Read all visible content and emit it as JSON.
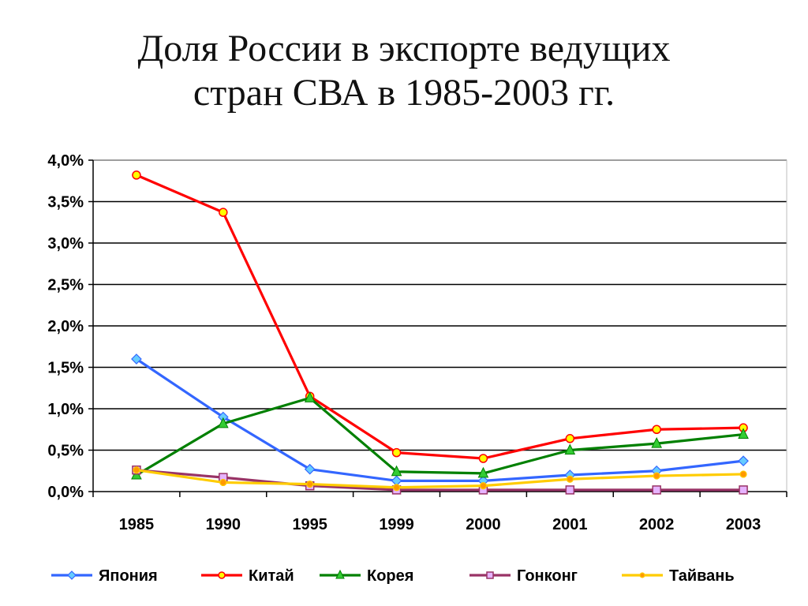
{
  "title": {
    "line1": "Доля России в экспорте ведущих",
    "line2": "стран СВА в 1985-2003 гг."
  },
  "chart_data": {
    "type": "line",
    "title": "Доля России в экспорте ведущих стран СВА в 1985-2003 гг.",
    "xlabel": "",
    "ylabel": "",
    "categories": [
      "1985",
      "1990",
      "1995",
      "1999",
      "2000",
      "2001",
      "2002",
      "2003"
    ],
    "ylim": [
      0,
      4.0
    ],
    "yticks": [
      "0,0%",
      "0,5%",
      "1,0%",
      "1,5%",
      "2,0%",
      "2,5%",
      "3,0%",
      "3,5%",
      "4,0%"
    ],
    "grid": true,
    "legend_position": "bottom",
    "series": [
      {
        "name": "Япония",
        "color": "#3366ff",
        "marker": "diamond",
        "values": [
          1.6,
          0.9,
          0.27,
          0.13,
          0.13,
          0.2,
          0.25,
          0.37
        ]
      },
      {
        "name": "Китай",
        "color": "#ff0000",
        "marker": "circle",
        "values": [
          3.82,
          3.37,
          1.15,
          0.47,
          0.4,
          0.64,
          0.75,
          0.77
        ]
      },
      {
        "name": "Корея",
        "color": "#008000",
        "marker": "triangle",
        "values": [
          0.2,
          0.82,
          1.13,
          0.24,
          0.22,
          0.5,
          0.58,
          0.69
        ]
      },
      {
        "name": "Гонконг",
        "color": "#993366",
        "marker": "square",
        "values": [
          0.26,
          0.17,
          0.07,
          0.02,
          0.02,
          0.02,
          0.02,
          0.02
        ]
      },
      {
        "name": "Тайвань",
        "color": "#ffcc00",
        "marker": "dot",
        "values": [
          0.26,
          0.11,
          0.09,
          0.05,
          0.07,
          0.15,
          0.19,
          0.21
        ]
      }
    ]
  }
}
